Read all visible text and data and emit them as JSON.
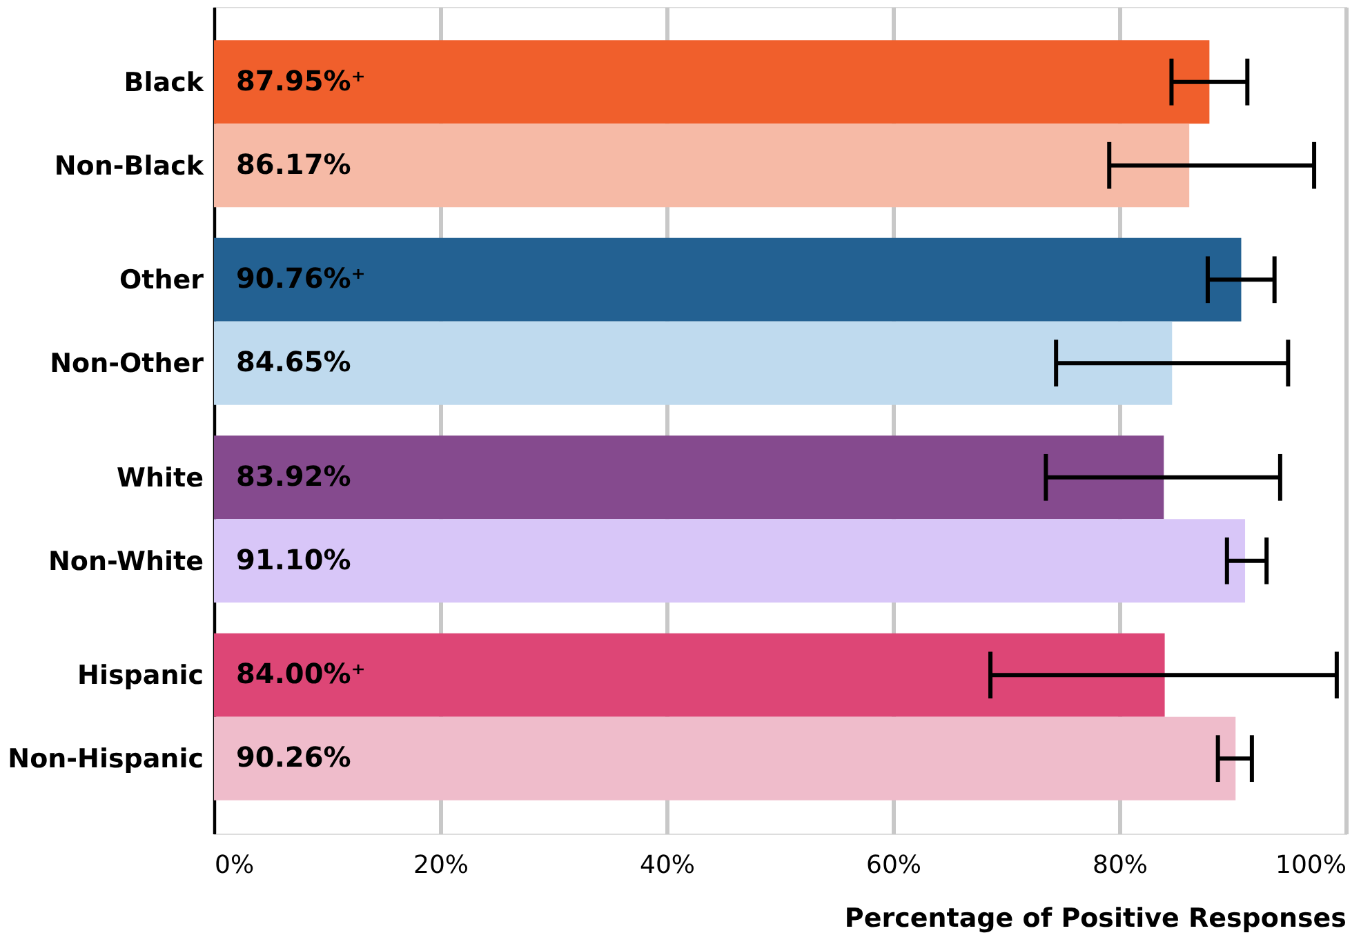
{
  "chart_data": {
    "type": "bar",
    "orientation": "horizontal",
    "xlabel": "Percentage of Positive Responses",
    "categories": [
      "Black",
      "Non-Black",
      "Other",
      "Non-Other",
      "White",
      "Non-White",
      "Hispanic",
      "Non-Hispanic"
    ],
    "values": [
      87.95,
      86.17,
      90.76,
      84.65,
      83.92,
      91.1,
      84.0,
      90.26
    ],
    "colors": [
      "#f05f2c",
      "#f6baa6",
      "#236192",
      "#bfdaee",
      "#854a8e",
      "#d8c6f8",
      "#dd4676",
      "#efbccb"
    ],
    "errors": [
      [
        84.6,
        91.3
      ],
      [
        79.1,
        97.2
      ],
      [
        87.8,
        93.7
      ],
      [
        74.4,
        94.9
      ],
      [
        73.5,
        94.2
      ],
      [
        89.5,
        93.0
      ],
      [
        68.6,
        99.2
      ],
      [
        88.7,
        91.7
      ]
    ],
    "value_labels": [
      "87.95%⁺",
      "86.17%",
      "90.76%⁺",
      "84.65%",
      "83.92%",
      "91.10%",
      "84.00%⁺",
      "90.26%"
    ],
    "xlim": [
      0,
      100
    ],
    "xticks": [
      {
        "value": 0,
        "label": "0%"
      },
      {
        "value": 20,
        "label": "20%"
      },
      {
        "value": 40,
        "label": "40%"
      },
      {
        "value": 60,
        "label": "60%"
      },
      {
        "value": 80,
        "label": "80%"
      },
      {
        "value": 100,
        "label": "100%"
      }
    ],
    "grid": "x"
  }
}
